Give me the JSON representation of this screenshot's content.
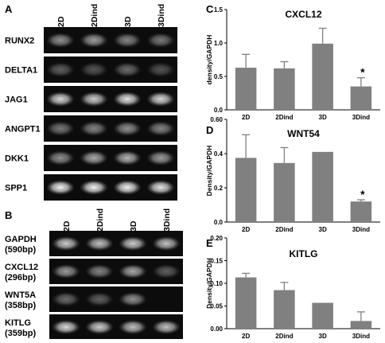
{
  "panels": {
    "a": {
      "letter": "A",
      "lanes": [
        "2D",
        "2Dind",
        "3D",
        "3Dind"
      ],
      "genes": [
        {
          "name": "RUNX2",
          "bands": [
            0.55,
            0.6,
            0.5,
            0.45
          ]
        },
        {
          "name": "DELTA1",
          "bands": [
            0.35,
            0.3,
            0.4,
            0.3
          ]
        },
        {
          "name": "JAG1",
          "bands": [
            0.85,
            0.8,
            0.9,
            0.85
          ]
        },
        {
          "name": "ANGPT1",
          "bands": [
            0.45,
            0.5,
            0.55,
            0.5
          ]
        },
        {
          "name": "DKK1",
          "bands": [
            0.55,
            0.65,
            0.7,
            0.6
          ]
        },
        {
          "name": "SPP1",
          "bands": [
            0.95,
            0.95,
            0.95,
            0.9
          ]
        }
      ]
    },
    "b": {
      "letter": "B",
      "lanes": [
        "2D",
        "2Dind",
        "3D",
        "3Dind"
      ],
      "genes": [
        {
          "name": "GAPDH",
          "size": "(590bp)",
          "bands": [
            0.8,
            0.75,
            0.8,
            0.75
          ]
        },
        {
          "name": "CXCL12",
          "size": "(296bp)",
          "bands": [
            0.6,
            0.5,
            0.65,
            0.35
          ]
        },
        {
          "name": "WNT5A",
          "size": "(358bp)",
          "bands": [
            0.4,
            0.35,
            0.55,
            0.05
          ]
        },
        {
          "name": "KITLG",
          "size": "(359bp)",
          "bands": [
            0.85,
            0.8,
            0.75,
            0.75
          ]
        }
      ]
    }
  },
  "chart_data": [
    {
      "letter": "C",
      "type": "bar",
      "title": "CXCL12",
      "categories": [
        "2D",
        "2Dind",
        "3D",
        "3Dind"
      ],
      "values": [
        0.63,
        0.62,
        0.99,
        0.35
      ],
      "errors": [
        0.2,
        0.1,
        0.23,
        0.13
      ],
      "significant": [
        false,
        false,
        false,
        true
      ],
      "marker": "*",
      "ylabel": "density/GAPDH",
      "ylim": [
        0,
        1.5
      ],
      "yticks": [
        0.0,
        0.5,
        1.0,
        1.5
      ],
      "yticklabels": [
        "0.0",
        "0.5",
        "1.0",
        "1.5"
      ]
    },
    {
      "letter": "D",
      "type": "bar",
      "title": "WNT54",
      "categories": [
        "2D",
        "2Dind",
        "3D",
        "3Dind"
      ],
      "values": [
        0.375,
        0.345,
        0.41,
        0.12
      ],
      "errors": [
        0.135,
        0.09,
        0.0,
        0.01
      ],
      "significant": [
        false,
        false,
        false,
        true
      ],
      "marker": "*",
      "ylabel": "Density/GAPDH",
      "ylim": [
        0,
        0.6
      ],
      "yticks": [
        0.0,
        0.2,
        0.4,
        0.6
      ],
      "yticklabels": [
        "0.0",
        "0.2",
        "0.4",
        "0.60"
      ]
    },
    {
      "letter": "E",
      "type": "bar",
      "title": "KITLG",
      "categories": [
        "2D",
        "2Dind",
        "3D",
        "3Dind"
      ],
      "values": [
        0.113,
        0.085,
        0.057,
        0.017
      ],
      "errors": [
        0.009,
        0.017,
        0.0,
        0.02
      ],
      "significant": [
        false,
        false,
        false,
        false
      ],
      "marker": "*",
      "ylabel": "Density/GAPDH",
      "ylim": [
        0,
        0.2
      ],
      "yticks": [
        0.0,
        0.05,
        0.1,
        0.15,
        0.2
      ],
      "yticklabels": [
        "0.00",
        "0.05",
        "0.10",
        "0.15",
        "0.20"
      ]
    }
  ]
}
